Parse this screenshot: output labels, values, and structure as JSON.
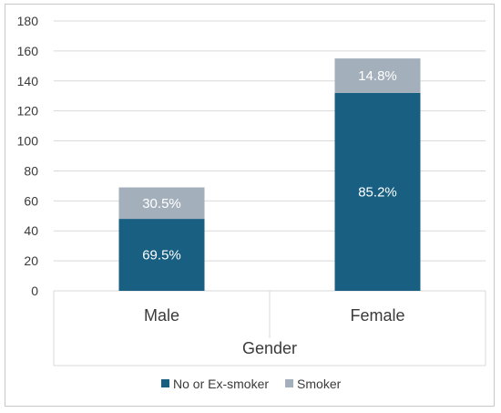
{
  "chart_data": {
    "type": "bar",
    "stacked": true,
    "categories": [
      "Male",
      "Female"
    ],
    "series": [
      {
        "name": "No or Ex-smoker",
        "values": [
          48,
          132
        ],
        "labels": [
          "69.5%",
          "85.2%"
        ],
        "color": "#185F82"
      },
      {
        "name": "Smoker",
        "values": [
          21,
          23
        ],
        "labels": [
          "30.5%",
          "14.8%"
        ],
        "color": "#A3B0BB"
      }
    ],
    "xlabel": "Gender",
    "ylabel": "",
    "ylim": [
      0,
      180
    ],
    "yticks": [
      0,
      20,
      40,
      60,
      80,
      100,
      120,
      140,
      160,
      180
    ],
    "grid": true,
    "legend": "bottom"
  }
}
